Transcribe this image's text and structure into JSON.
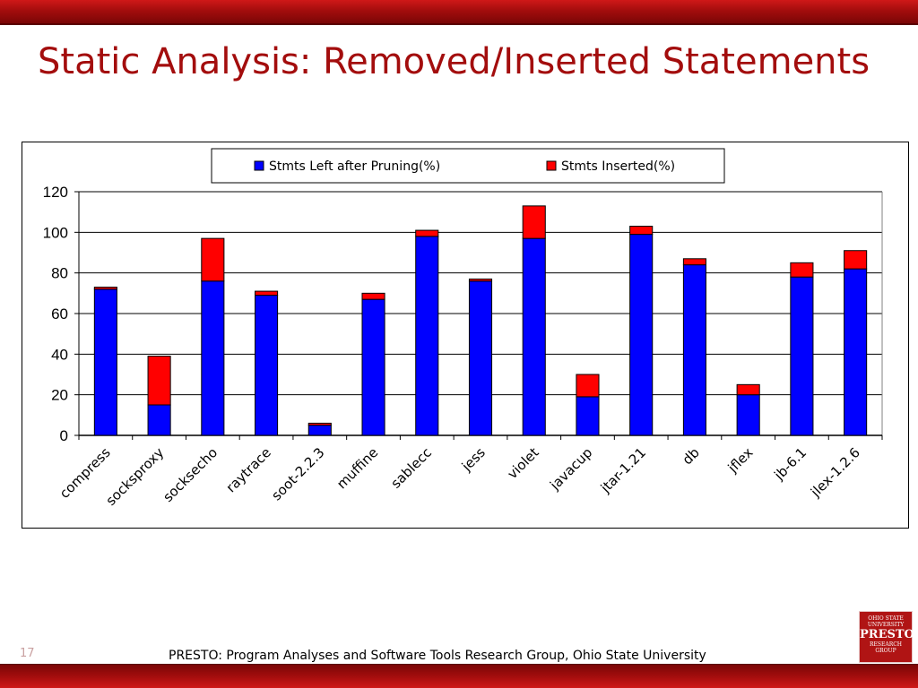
{
  "slide": {
    "title": "Static Analysis: Removed/Inserted Statements",
    "page_number": "17",
    "footer": "PRESTO: Program Analyses and Software Tools Research Group, Ohio State University",
    "logo": {
      "line1": "OHIO STATE",
      "line2": "UNIVERSITY",
      "line3": "PRESTO",
      "line4": "RESEARCH",
      "line5": "GROUP"
    }
  },
  "colors": {
    "band": "#a30d0d",
    "title": "#a30d0d",
    "series_left": "#0000ff",
    "series_inserted": "#ff0000"
  },
  "chart_data": {
    "type": "bar",
    "stacked": true,
    "categories": [
      "compress",
      "socksproxy",
      "socksecho",
      "raytrace",
      "soot-2.2.3",
      "muffine",
      "sablecc",
      "jess",
      "violet",
      "javacup",
      "jtar-1.21",
      "db",
      "jflex",
      "jb-6.1",
      "jlex-1.2.6"
    ],
    "series": [
      {
        "name": "Stmts Left after Pruning(%)",
        "color": "#0000ff",
        "values": [
          72,
          15,
          76,
          69,
          5,
          67,
          98,
          76,
          97,
          19,
          99,
          84,
          20,
          78,
          82
        ]
      },
      {
        "name": "Stmts Inserted(%)",
        "color": "#ff0000",
        "values": [
          1,
          24,
          21,
          2,
          1,
          3,
          3,
          1,
          16,
          11,
          4,
          3,
          5,
          7,
          9
        ]
      }
    ],
    "ylim": [
      0,
      120
    ],
    "yticks": [
      0,
      20,
      40,
      60,
      80,
      100,
      120
    ],
    "grid": true,
    "legend": "top"
  }
}
